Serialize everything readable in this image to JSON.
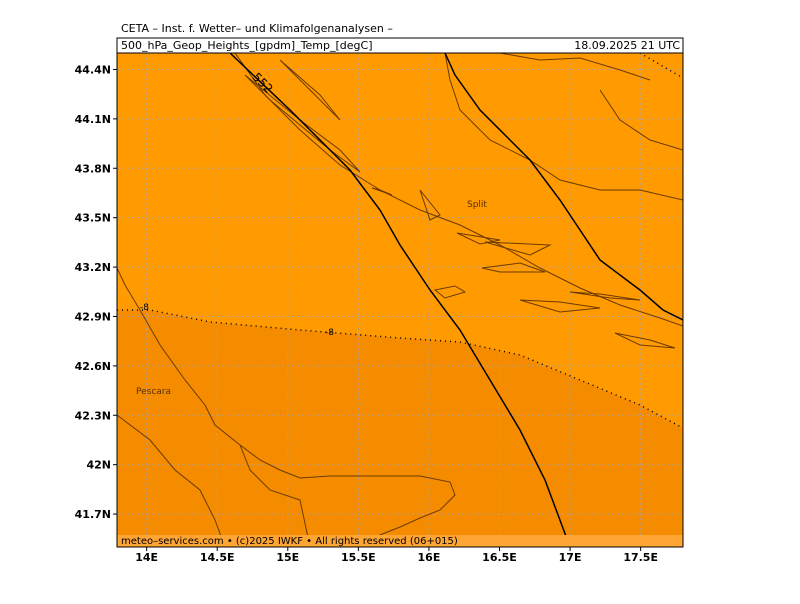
{
  "header": "CETA – Inst. f. Wetter– und Klimafolgenanalysen –",
  "subtitle": "500_hPa_Geop_Heights_[gpdm]_Temp_[degC]",
  "valid_time": "18.09.2025 21 UTC",
  "map": {
    "xlim": [
      13.79,
      17.8
    ],
    "ylim": [
      41.5,
      44.5
    ],
    "xticks": [
      {
        "value": 14,
        "label": "14E"
      },
      {
        "value": 14.5,
        "label": "14.5E"
      },
      {
        "value": 15,
        "label": "15E"
      },
      {
        "value": 15.5,
        "label": "15.5E"
      },
      {
        "value": 16,
        "label": "16E"
      },
      {
        "value": 16.5,
        "label": "16.5E"
      },
      {
        "value": 17,
        "label": "17E"
      },
      {
        "value": 17.5,
        "label": "17.5E"
      }
    ],
    "yticks": [
      {
        "value": 41.7,
        "label": "41.7N"
      },
      {
        "value": 42,
        "label": "42N"
      },
      {
        "value": 42.3,
        "label": "42.3N"
      },
      {
        "value": 42.6,
        "label": "42.6N"
      },
      {
        "value": 42.9,
        "label": "42.9N"
      },
      {
        "value": 43.2,
        "label": "43.2N"
      },
      {
        "value": 43.5,
        "label": "43.5N"
      },
      {
        "value": 43.8,
        "label": "43.8N"
      },
      {
        "value": 44.1,
        "label": "44.1N"
      },
      {
        "value": 44.4,
        "label": "44.4N"
      }
    ],
    "places": [
      "Split",
      "Pescara"
    ],
    "contour_labels": [
      "552",
      "-8",
      "-8"
    ]
  },
  "footer": "meteo–services.com • (c)2025 IWKF • All rights reserved (06+015)"
}
